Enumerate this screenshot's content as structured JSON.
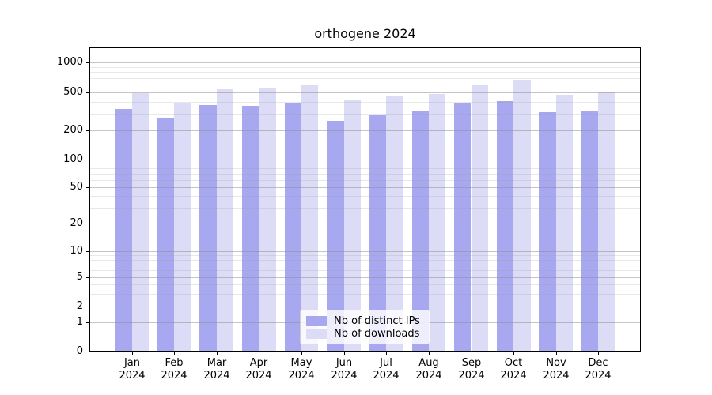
{
  "chart_data": {
    "type": "bar",
    "title": "orthogene 2024",
    "categories": [
      "Jan",
      "Feb",
      "Mar",
      "Apr",
      "May",
      "Jun",
      "Jul",
      "Aug",
      "Sep",
      "Oct",
      "Nov",
      "Dec"
    ],
    "year_label": "2024",
    "series": [
      {
        "name": "Nb of distinct IPs",
        "color": "#a8a8f0",
        "values": [
          335,
          270,
          370,
          365,
          390,
          250,
          290,
          320,
          380,
          405,
          310,
          320
        ]
      },
      {
        "name": "Nb of downloads",
        "color": "#dcdcf7",
        "values": [
          490,
          380,
          540,
          560,
          595,
          420,
          460,
          485,
          595,
          675,
          470,
          500
        ]
      }
    ],
    "xlabel": "",
    "ylabel": "",
    "y_axis": {
      "scale": "symlog",
      "major_ticks": [
        1000,
        500,
        200,
        100,
        50,
        20,
        10,
        5,
        2,
        1,
        0
      ],
      "minor_ticks": [
        900,
        800,
        700,
        600,
        400,
        300,
        90,
        80,
        70,
        60,
        40,
        30,
        9,
        8,
        7,
        6,
        4,
        3
      ],
      "range": [
        0,
        1400
      ]
    },
    "grid": true,
    "legend_position": "lower-center"
  }
}
